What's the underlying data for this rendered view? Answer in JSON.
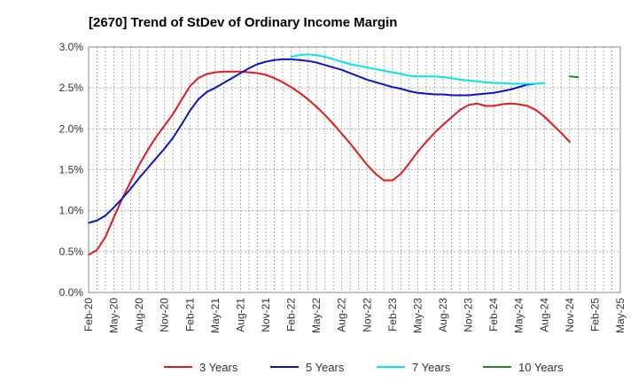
{
  "chart_data": {
    "type": "line",
    "title": "[2670]  Trend of StDev of Ordinary Income Margin",
    "xlabel": "",
    "ylabel": "",
    "ylim": [
      0,
      3.0
    ],
    "yticks": [
      0,
      0.5,
      1.0,
      1.5,
      2.0,
      2.5,
      3.0
    ],
    "ytick_labels": [
      "0.0%",
      "0.5%",
      "1.0%",
      "1.5%",
      "2.0%",
      "2.5%",
      "3.0%"
    ],
    "xticks": [
      "Feb-20",
      "May-20",
      "Aug-20",
      "Nov-20",
      "Feb-21",
      "May-21",
      "Aug-21",
      "Nov-21",
      "Feb-22",
      "May-22",
      "Aug-22",
      "Nov-22",
      "Feb-23",
      "May-23",
      "Aug-23",
      "Nov-23",
      "Feb-24",
      "May-24",
      "Aug-24",
      "Nov-24",
      "Feb-25",
      "May-25"
    ],
    "grid": true,
    "legend_position": "bottom",
    "series": [
      {
        "name": "3 Years",
        "color": "#e31a1c",
        "start_index": 0,
        "values": [
          0.46,
          0.52,
          0.68,
          0.92,
          1.15,
          1.36,
          1.56,
          1.74,
          1.9,
          2.04,
          2.18,
          2.35,
          2.52,
          2.62,
          2.67,
          2.69,
          2.7,
          2.7,
          2.7,
          2.69,
          2.68,
          2.66,
          2.62,
          2.57,
          2.51,
          2.44,
          2.36,
          2.27,
          2.17,
          2.06,
          1.94,
          1.82,
          1.69,
          1.56,
          1.45,
          1.37,
          1.37,
          1.45,
          1.58,
          1.72,
          1.84,
          1.95,
          2.05,
          2.14,
          2.23,
          2.29,
          2.31,
          2.28,
          2.28,
          2.3,
          2.31,
          2.3,
          2.28,
          2.23,
          2.15,
          2.05,
          1.95,
          1.84
        ]
      },
      {
        "name": "5 Years",
        "color": "#0a14c8",
        "start_index": 0,
        "values": [
          0.85,
          0.88,
          0.94,
          1.04,
          1.15,
          1.27,
          1.4,
          1.52,
          1.64,
          1.76,
          1.89,
          2.05,
          2.22,
          2.36,
          2.45,
          2.5,
          2.56,
          2.62,
          2.68,
          2.74,
          2.79,
          2.82,
          2.84,
          2.85,
          2.85,
          2.84,
          2.83,
          2.81,
          2.78,
          2.75,
          2.72,
          2.68,
          2.64,
          2.6,
          2.57,
          2.54,
          2.51,
          2.49,
          2.46,
          2.44,
          2.43,
          2.42,
          2.42,
          2.41,
          2.41,
          2.41,
          2.42,
          2.43,
          2.44,
          2.46,
          2.48,
          2.51,
          2.54,
          2.55
        ]
      },
      {
        "name": "7 Years",
        "color": "#00e5ee",
        "start_index": 24,
        "values": [
          2.88,
          2.9,
          2.91,
          2.9,
          2.88,
          2.85,
          2.82,
          2.79,
          2.77,
          2.75,
          2.73,
          2.71,
          2.69,
          2.67,
          2.65,
          2.64,
          2.64,
          2.64,
          2.63,
          2.62,
          2.6,
          2.59,
          2.58,
          2.57,
          2.56,
          2.56,
          2.55,
          2.55,
          2.55,
          2.55,
          2.56
        ]
      },
      {
        "name": "10 Years",
        "color": "#1e8c1e",
        "start_index": 57,
        "values": [
          2.64,
          2.63
        ]
      }
    ]
  }
}
